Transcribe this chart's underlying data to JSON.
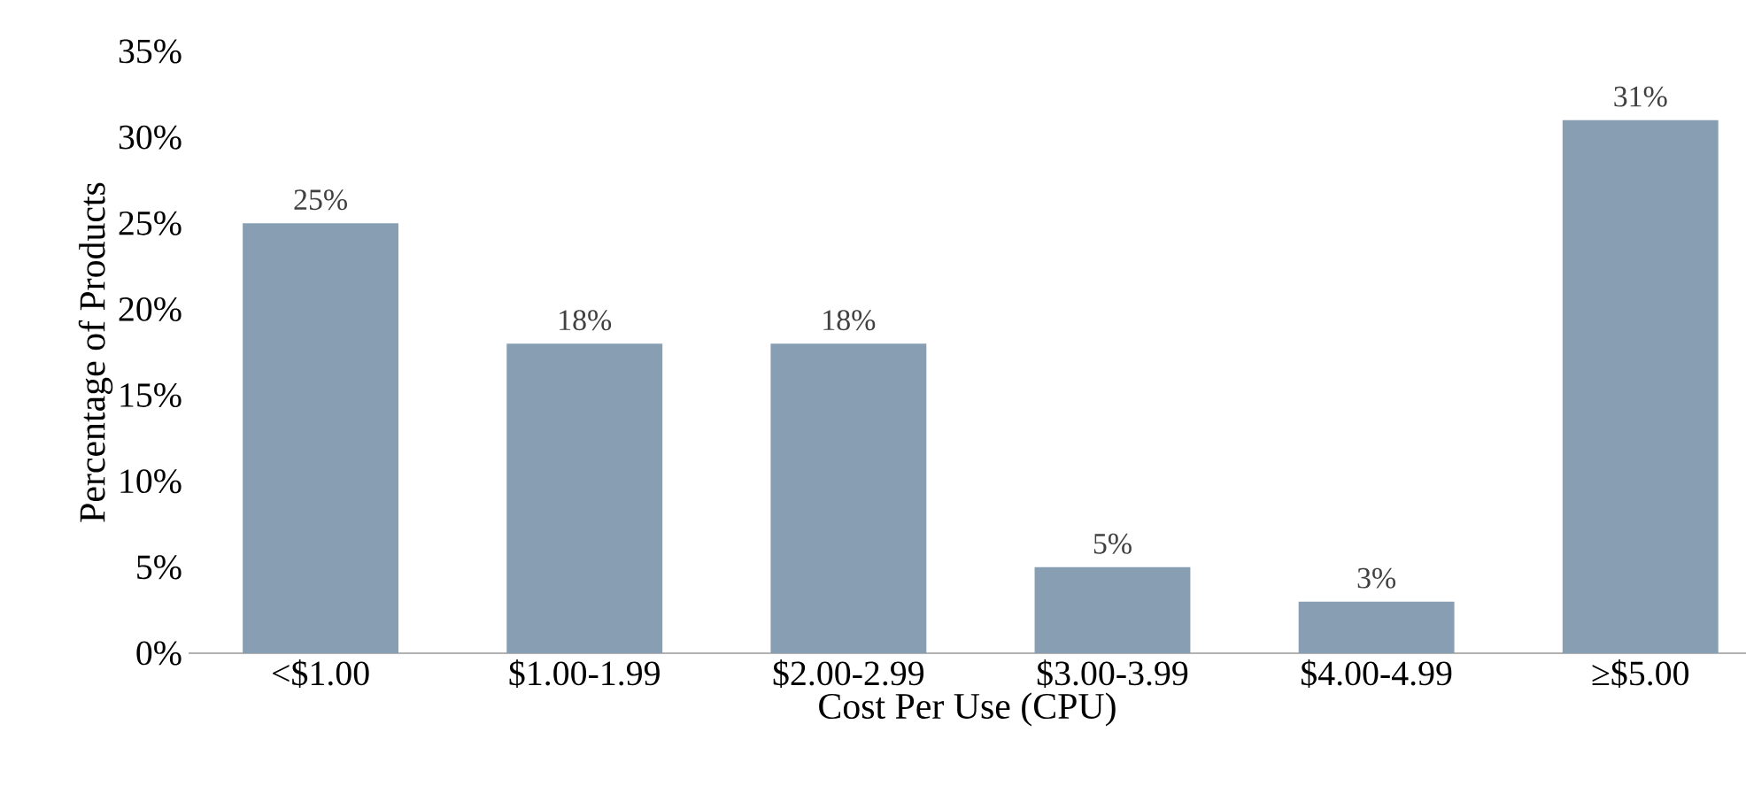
{
  "chart_data": {
    "type": "bar",
    "xlabel": "Cost Per Use (CPU)",
    "ylabel": "Percentage of Products",
    "categories": [
      "<$1.00",
      "$1.00-1.99",
      "$2.00-2.99",
      "$3.00-3.99",
      "$4.00-4.99",
      "≥$5.00"
    ],
    "values": [
      25,
      18,
      18,
      5,
      3,
      31
    ],
    "value_labels": [
      "25%",
      "18%",
      "18%",
      "5%",
      "3%",
      "31%"
    ],
    "color": "#889fb3",
    "ylim": [
      0,
      35
    ],
    "yticks": [
      {
        "value": 0,
        "label": "0%"
      },
      {
        "value": 5,
        "label": "5%"
      },
      {
        "value": 10,
        "label": "10%"
      },
      {
        "value": 15,
        "label": "15%"
      },
      {
        "value": 20,
        "label": "20%"
      },
      {
        "value": 25,
        "label": "25%"
      },
      {
        "value": 30,
        "label": "30%"
      },
      {
        "value": 35,
        "label": "35%"
      }
    ],
    "grid": false
  }
}
